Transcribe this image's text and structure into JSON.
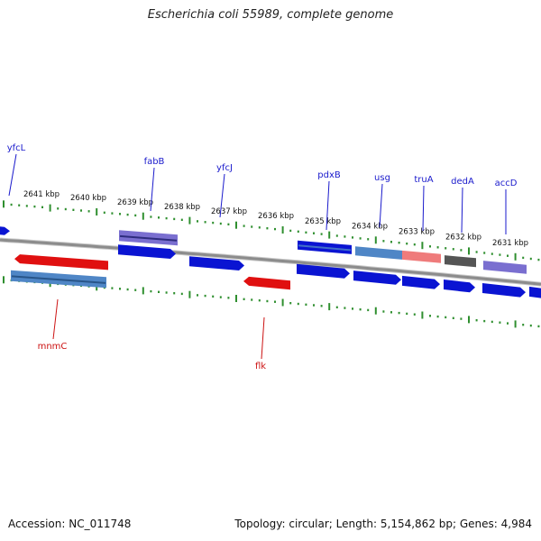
{
  "title": "Escherichia coli 55989, complete genome",
  "footer": {
    "accession": "Accession: NC_011748",
    "topology": "Topology: circular; Length: 5,154,862 bp; Genes: 4,984"
  },
  "colors": {
    "backbone": "#8c8c8c",
    "tick": "#2f8f2f",
    "forward_gene": "#0a14d2",
    "reverse_gene": "#e01010",
    "forward_label": "#1a1acc",
    "reverse_label": "#cc1111",
    "feature_purple": "#7a6fd0",
    "feature_steelblue": "#4f86c6",
    "feature_salmon": "#ef7b7b",
    "feature_gray": "#555555"
  },
  "scale": {
    "kbp_labels": [
      "2641 kbp",
      "2640 kbp",
      "2639 kbp",
      "2638 kbp",
      "2637 kbp",
      "2636 kbp",
      "2635 kbp",
      "2634 kbp",
      "2633 kbp",
      "2632 kbp",
      "2631 kbp"
    ]
  },
  "gene_labels": {
    "top": [
      "yfcL",
      "fabB",
      "yfcJ",
      "pdxB",
      "usg",
      "truA",
      "dedA",
      "accD"
    ],
    "bottom": [
      "mnmC",
      "flk"
    ]
  }
}
